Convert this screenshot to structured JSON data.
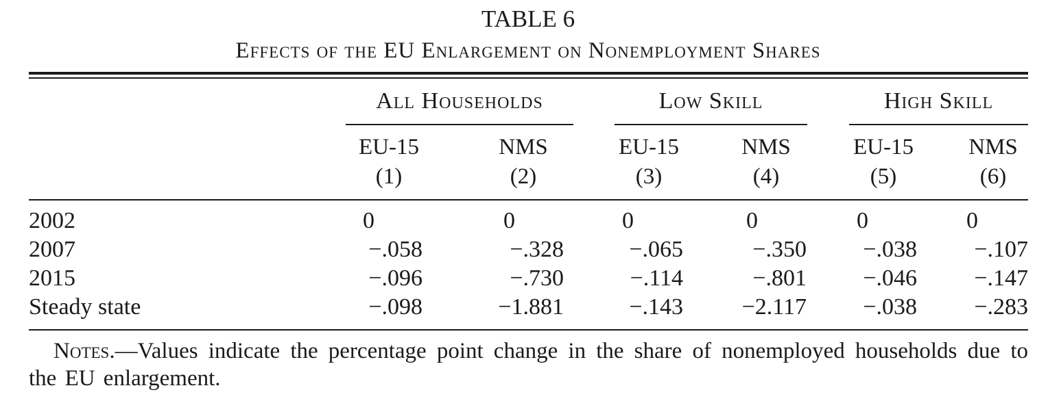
{
  "table": {
    "number": "TABLE 6",
    "title": "Effects of the EU Enlargement on Nonemployment Shares",
    "groups": [
      "All Households",
      "Low Skill",
      "High Skill"
    ],
    "columns": [
      {
        "label": "EU-15",
        "num": "(1)"
      },
      {
        "label": "NMS",
        "num": "(2)"
      },
      {
        "label": "EU-15",
        "num": "(3)"
      },
      {
        "label": "NMS",
        "num": "(4)"
      },
      {
        "label": "EU-15",
        "num": "(5)"
      },
      {
        "label": "NMS",
        "num": "(6)"
      }
    ],
    "rows": [
      {
        "label": "2002",
        "values": [
          "0",
          "0",
          "0",
          "0",
          "0",
          "0"
        ]
      },
      {
        "label": "2007",
        "values": [
          "−.058",
          "−.328",
          "−.065",
          "−.350",
          "−.038",
          "−.107"
        ]
      },
      {
        "label": "2015",
        "values": [
          "−.096",
          "−.730",
          "−.114",
          "−.801",
          "−.046",
          "−.147"
        ]
      },
      {
        "label": "Steady state",
        "values": [
          "−.098",
          "−1.881",
          "−.143",
          "−2.117",
          "−.038",
          "−.283"
        ]
      }
    ],
    "notes_lead": "Notes.",
    "notes_text": "—Values indicate the percentage point change in the share of nonemployed households due to the EU enlargement."
  }
}
